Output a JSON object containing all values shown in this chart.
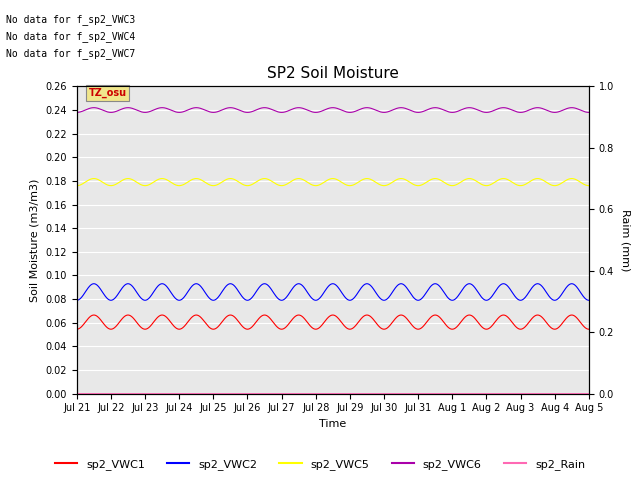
{
  "title": "SP2 Soil Moisture",
  "xlabel": "Time",
  "ylabel_left": "Soil Moisture (m3/m3)",
  "ylabel_right": "Raim (mm)",
  "ylim_left": [
    0.0,
    0.26
  ],
  "ylim_right": [
    0.0,
    1.0
  ],
  "yticks_left": [
    0.0,
    0.02,
    0.04,
    0.06,
    0.08,
    0.1,
    0.12,
    0.14,
    0.16,
    0.18,
    0.2,
    0.22,
    0.24,
    0.26
  ],
  "yticks_right": [
    0.0,
    0.2,
    0.4,
    0.6,
    0.8,
    1.0
  ],
  "n_points": 3000,
  "no_data_lines": [
    "No data for f_sp2_VWC3",
    "No data for f_sp2_VWC4",
    "No data for f_sp2_VWC7"
  ],
  "tz_label": "TZ_osu",
  "tz_bg": "#f0e68c",
  "tz_fg": "#cc0000",
  "series": {
    "sp2_VWC1": {
      "color": "#ff0000",
      "base": 0.0605,
      "amp": 0.006,
      "period_days": 1.0
    },
    "sp2_VWC2": {
      "color": "#0000ff",
      "base": 0.086,
      "amp": 0.007,
      "period_days": 1.0
    },
    "sp2_VWC5": {
      "color": "#ffff00",
      "base": 0.179,
      "amp": 0.003,
      "period_days": 1.0
    },
    "sp2_VWC6": {
      "color": "#aa00aa",
      "base": 0.24,
      "amp": 0.002,
      "period_days": 1.0
    },
    "sp2_Rain": {
      "color": "#ff69b4",
      "base": 0.0,
      "amp": 0.0,
      "period_days": 1.0
    }
  },
  "x_tick_labels": [
    "Jul 21",
    "Jul 22",
    "Jul 23",
    "Jul 24",
    "Jul 25",
    "Jul 26",
    "Jul 27",
    "Jul 28",
    "Jul 29",
    "Jul 30",
    "Jul 31",
    "Aug 1",
    "Aug 2",
    "Aug 3",
    "Aug 4",
    "Aug 5"
  ],
  "bg_color": "#e8e8e8",
  "grid_color": "#ffffff",
  "title_fontsize": 11,
  "label_fontsize": 8,
  "tick_fontsize": 7,
  "nodata_fontsize": 7,
  "tz_fontsize": 7,
  "legend_fontsize": 8
}
